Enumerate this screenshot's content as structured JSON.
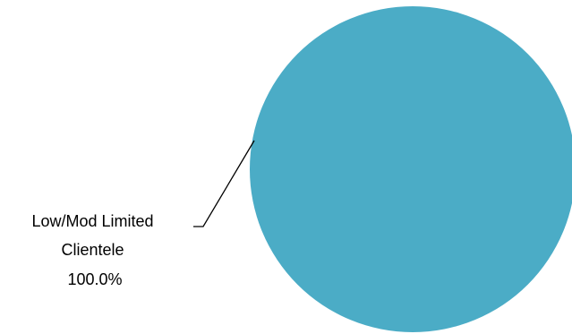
{
  "chart_data": {
    "type": "pie",
    "categories": [
      "Low/Mod Limited Clientele"
    ],
    "values": [
      100.0
    ],
    "slices": [
      {
        "label_lines": [
          "Low/Mod Limited",
          "Clientele",
          "100.0%"
        ],
        "value": 100.0,
        "percent": "100.0%",
        "color": "#4BACC6"
      }
    ],
    "title": "",
    "legend": "none",
    "data_labels": "outside-left-with-leader-line"
  }
}
